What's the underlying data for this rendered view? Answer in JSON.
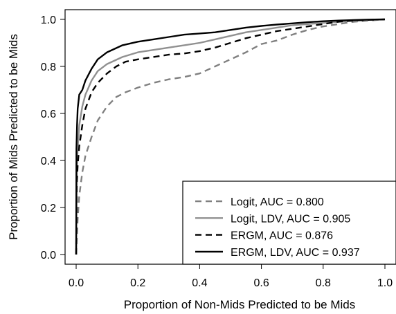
{
  "chart_data": {
    "type": "line",
    "title": "",
    "xlabel": "Proportion of Non-Mids Predicted to be Mids",
    "ylabel": "Proportion of Mids Predicted to be Mids",
    "xlim": [
      0,
      1
    ],
    "ylim": [
      0,
      1
    ],
    "xticks": [
      "0.0",
      "0.2",
      "0.4",
      "0.6",
      "0.8",
      "1.0"
    ],
    "yticks": [
      "0.0",
      "0.2",
      "0.4",
      "0.6",
      "0.8",
      "1.0"
    ],
    "grid": false,
    "legend_position": "bottom-right",
    "series": [
      {
        "name": "Logit, AUC = 0.800",
        "color": "#808080",
        "dash": "dashed",
        "x": [
          0,
          0.005,
          0.01,
          0.02,
          0.03,
          0.05,
          0.07,
          0.1,
          0.13,
          0.16,
          0.2,
          0.25,
          0.3,
          0.35,
          0.4,
          0.45,
          0.5,
          0.55,
          0.6,
          0.65,
          0.7,
          0.75,
          0.8,
          0.85,
          0.9,
          0.95,
          1.0
        ],
        "y": [
          0,
          0.15,
          0.25,
          0.35,
          0.42,
          0.5,
          0.57,
          0.63,
          0.67,
          0.69,
          0.71,
          0.73,
          0.745,
          0.755,
          0.77,
          0.8,
          0.83,
          0.86,
          0.895,
          0.91,
          0.935,
          0.955,
          0.97,
          0.98,
          0.99,
          0.995,
          1.0
        ]
      },
      {
        "name": "Logit, LDV, AUC = 0.905",
        "color": "#909090",
        "dash": "solid",
        "x": [
          0,
          0.002,
          0.005,
          0.01,
          0.02,
          0.03,
          0.05,
          0.07,
          0.1,
          0.15,
          0.2,
          0.25,
          0.3,
          0.35,
          0.4,
          0.45,
          0.5,
          0.55,
          0.6,
          0.65,
          0.7,
          0.75,
          0.8,
          0.85,
          0.9,
          0.95,
          1.0
        ],
        "y": [
          0,
          0.35,
          0.45,
          0.55,
          0.63,
          0.68,
          0.74,
          0.78,
          0.81,
          0.84,
          0.86,
          0.87,
          0.88,
          0.89,
          0.9,
          0.915,
          0.93,
          0.945,
          0.955,
          0.965,
          0.975,
          0.98,
          0.985,
          0.99,
          0.995,
          0.998,
          1.0
        ]
      },
      {
        "name": "ERGM, AUC = 0.876",
        "color": "#000000",
        "dash": "dashed",
        "x": [
          0,
          0.002,
          0.005,
          0.01,
          0.02,
          0.03,
          0.05,
          0.07,
          0.1,
          0.13,
          0.16,
          0.2,
          0.25,
          0.3,
          0.35,
          0.4,
          0.45,
          0.5,
          0.55,
          0.6,
          0.65,
          0.7,
          0.75,
          0.8,
          0.85,
          0.9,
          0.95,
          1.0
        ],
        "y": [
          0,
          0.3,
          0.38,
          0.46,
          0.55,
          0.62,
          0.69,
          0.73,
          0.77,
          0.8,
          0.82,
          0.83,
          0.84,
          0.85,
          0.855,
          0.865,
          0.88,
          0.9,
          0.92,
          0.935,
          0.95,
          0.96,
          0.97,
          0.98,
          0.99,
          0.995,
          0.998,
          1.0
        ]
      },
      {
        "name": "ERGM, LDV, AUC = 0.937",
        "color": "#000000",
        "dash": "solid",
        "x": [
          0,
          0.001,
          0.003,
          0.005,
          0.01,
          0.02,
          0.03,
          0.05,
          0.07,
          0.1,
          0.15,
          0.2,
          0.25,
          0.3,
          0.35,
          0.4,
          0.45,
          0.5,
          0.55,
          0.6,
          0.65,
          0.7,
          0.75,
          0.8,
          0.85,
          0.9,
          0.95,
          1.0
        ],
        "y": [
          0,
          0.45,
          0.55,
          0.62,
          0.68,
          0.7,
          0.74,
          0.79,
          0.83,
          0.86,
          0.89,
          0.905,
          0.915,
          0.925,
          0.935,
          0.94,
          0.945,
          0.955,
          0.965,
          0.972,
          0.978,
          0.983,
          0.988,
          0.992,
          0.995,
          0.997,
          0.999,
          1.0
        ]
      }
    ]
  }
}
